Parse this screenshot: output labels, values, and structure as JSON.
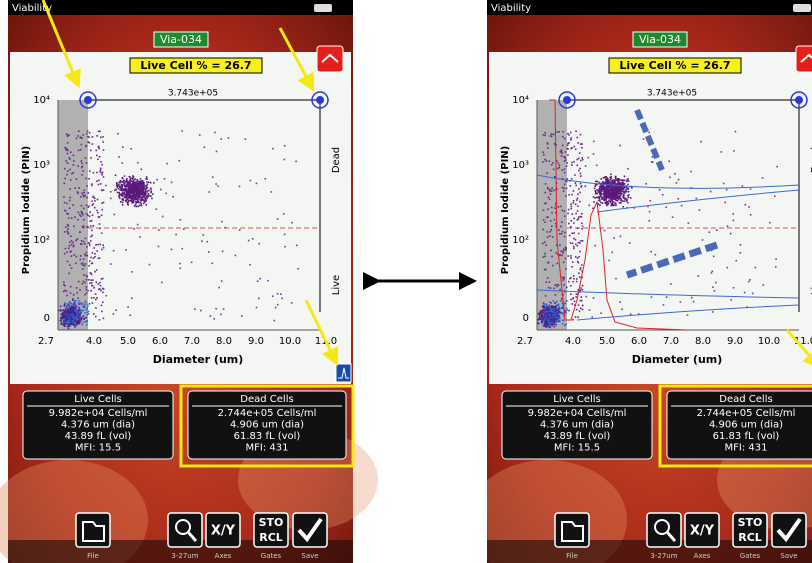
{
  "screen": {
    "app_title": "Viability",
    "sample": "Via-034",
    "live_cell": "Live Cell % = 26.7",
    "gate_count": "3.743e+05",
    "y_axis_label": "Propidium Iodide (PIN)",
    "x_axis_label": "Diameter (um)",
    "y_ticks": [
      "10⁴",
      "10³",
      "10²",
      "0"
    ],
    "x_ticks": [
      "2.7",
      "4.0",
      "5.0",
      "6.0",
      "7.0",
      "8.0",
      "9.0",
      "10.0",
      "11.0"
    ],
    "region_labels": [
      "Dead",
      "Live"
    ],
    "live_cells": {
      "title": "Live Cells",
      "lines": [
        "9.982e+04 Cells/ml",
        "4.376 um (dia)",
        "43.89 fL (vol)",
        "MFI:  15.5"
      ]
    },
    "dead_cells": {
      "title": "Dead Cells",
      "lines": [
        "2.744e+05 Cells/ml",
        "4.906 um (dia)",
        "61.83 fL (vol)",
        "MFI:   431"
      ]
    },
    "buttons": [
      {
        "label": "File"
      },
      {
        "label": "3-27um"
      },
      {
        "icon": "X/Y",
        "label": "Axes"
      },
      {
        "icon": [
          "STO",
          "RCL"
        ],
        "label": "Gates"
      },
      {
        "label": "Save"
      }
    ]
  }
}
